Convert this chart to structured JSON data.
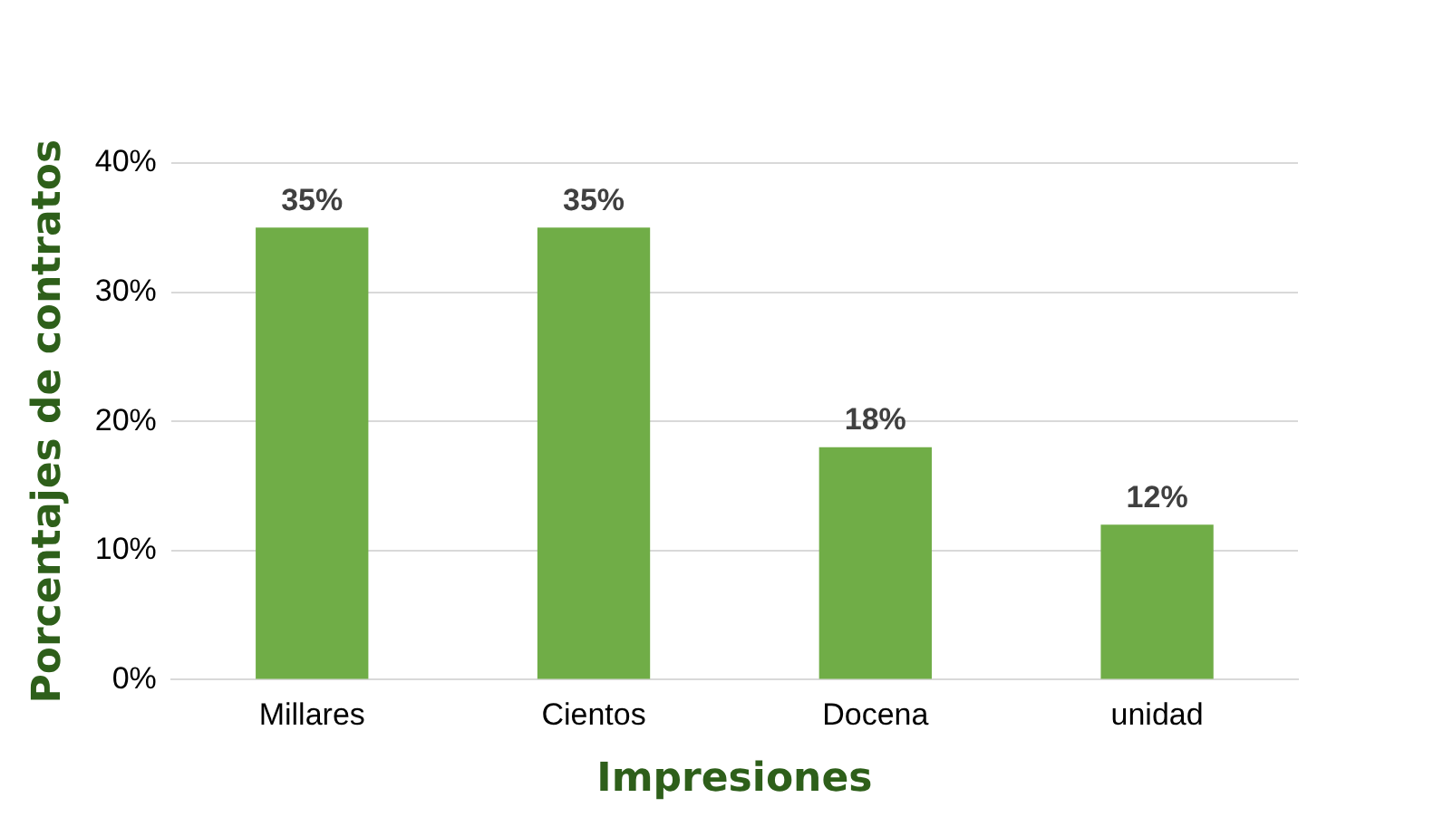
{
  "chart_data": {
    "type": "bar",
    "xlabel": "Impresiones",
    "ylabel": "Porcentajes de contratos",
    "categories": [
      "Millares",
      "Cientos",
      "Docena",
      "unidad"
    ],
    "values": [
      35,
      35,
      18,
      12
    ],
    "color": "#70ad47",
    "value_labels": [
      "35%",
      "35%",
      "18%",
      "12%"
    ],
    "ylim": [
      0,
      40
    ],
    "yticks": [
      {
        "value": 0,
        "label": "0%"
      },
      {
        "value": 10,
        "label": "10%"
      },
      {
        "value": 20,
        "label": "20%"
      },
      {
        "value": 30,
        "label": "30%"
      },
      {
        "value": 40,
        "label": "40%"
      }
    ],
    "grid": "y",
    "legend": false
  }
}
